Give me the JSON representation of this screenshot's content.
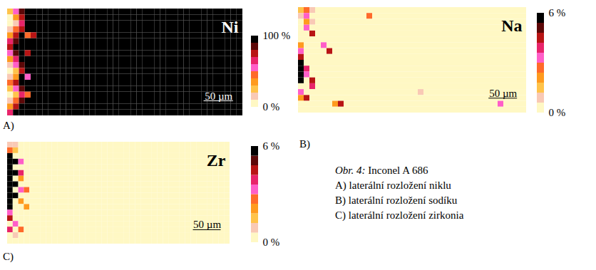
{
  "chart_data": [
    {
      "type": "heatmap",
      "title": "Ni",
      "panel_label": "A)",
      "tick_labels": false,
      "xlim": [
        0,
        400
      ],
      "ylim": [
        0,
        180
      ],
      "cell_size": 10,
      "base_value": 100,
      "colors": [
        "#fff8c4",
        "#f9c9b5",
        "#ffc34a",
        "#ff9a1e",
        "#ff6a2a",
        "#ff5ec8",
        "#e8246a",
        "#b81414",
        "#5c0808",
        "#000000"
      ],
      "cells": [
        [
          0,
          0,
          20
        ],
        [
          10,
          0,
          55
        ],
        [
          20,
          0,
          85
        ],
        [
          0,
          10,
          5
        ],
        [
          10,
          10,
          30
        ],
        [
          20,
          10,
          75
        ],
        [
          0,
          20,
          0
        ],
        [
          10,
          20,
          15
        ],
        [
          20,
          20,
          60
        ],
        [
          0,
          30,
          10
        ],
        [
          10,
          30,
          40
        ],
        [
          20,
          30,
          70
        ],
        [
          0,
          40,
          35
        ],
        [
          10,
          40,
          70
        ],
        [
          30,
          40,
          45
        ],
        [
          40,
          40,
          75
        ],
        [
          0,
          50,
          60
        ],
        [
          10,
          50,
          85
        ],
        [
          0,
          60,
          75
        ],
        [
          10,
          60,
          90
        ],
        [
          0,
          70,
          50
        ],
        [
          10,
          70,
          80
        ],
        [
          30,
          70,
          70
        ],
        [
          0,
          80,
          30
        ],
        [
          10,
          80,
          65
        ],
        [
          0,
          90,
          15
        ],
        [
          10,
          90,
          50
        ],
        [
          20,
          90,
          85
        ],
        [
          0,
          100,
          5
        ],
        [
          10,
          100,
          25
        ],
        [
          20,
          100,
          70
        ],
        [
          0,
          110,
          10
        ],
        [
          10,
          110,
          35
        ],
        [
          30,
          110,
          55
        ],
        [
          0,
          120,
          40
        ],
        [
          10,
          120,
          75
        ],
        [
          0,
          130,
          20
        ],
        [
          10,
          130,
          55
        ],
        [
          20,
          130,
          85
        ],
        [
          0,
          140,
          0
        ],
        [
          10,
          140,
          25
        ],
        [
          20,
          140,
          60
        ],
        [
          30,
          140,
          45
        ],
        [
          0,
          150,
          10
        ],
        [
          10,
          150,
          40
        ],
        [
          20,
          150,
          80
        ],
        [
          0,
          160,
          35
        ],
        [
          10,
          160,
          70
        ],
        [
          0,
          170,
          60
        ],
        [
          10,
          170,
          90
        ]
      ],
      "colorbar": {
        "range": [
          0,
          100
        ],
        "ticks": [
          {
            "value": 0,
            "label": "0 %"
          },
          {
            "value": 100,
            "label": "100 %"
          }
        ]
      },
      "scale_bar": {
        "length": 50,
        "label": "50 µm"
      }
    },
    {
      "type": "heatmap",
      "title": "Na",
      "panel_label": "B)",
      "tick_labels": false,
      "xlim": [
        0,
        400
      ],
      "ylim": [
        0,
        180
      ],
      "cell_size": 10,
      "base_value": 0,
      "colors": [
        "#fff8c4",
        "#f9c9b5",
        "#ffc34a",
        "#ff9a1e",
        "#ff6a2a",
        "#ff5ec8",
        "#e8246a",
        "#b81414",
        "#5c0808",
        "#000000"
      ],
      "cells": [
        [
          0,
          0,
          1.5
        ],
        [
          10,
          0,
          2.5
        ],
        [
          20,
          0,
          1
        ],
        [
          0,
          10,
          1
        ],
        [
          10,
          10,
          3
        ],
        [
          10,
          20,
          2
        ],
        [
          20,
          20,
          1
        ],
        [
          10,
          30,
          3
        ],
        [
          120,
          10,
          2.5
        ],
        [
          20,
          40,
          4.5
        ],
        [
          40,
          60,
          3
        ],
        [
          50,
          70,
          4.5
        ],
        [
          0,
          60,
          2
        ],
        [
          0,
          70,
          3
        ],
        [
          0,
          80,
          4.5
        ],
        [
          0,
          90,
          6
        ],
        [
          0,
          100,
          6
        ],
        [
          0,
          110,
          6
        ],
        [
          0,
          120,
          5.5
        ],
        [
          10,
          100,
          4
        ],
        [
          10,
          110,
          3
        ],
        [
          20,
          120,
          4.5
        ],
        [
          20,
          130,
          4
        ],
        [
          0,
          140,
          3
        ],
        [
          0,
          150,
          2
        ],
        [
          10,
          150,
          4.5
        ],
        [
          60,
          160,
          2
        ],
        [
          70,
          160,
          4.2
        ],
        [
          210,
          140,
          1
        ],
        [
          350,
          160,
          3.5
        ]
      ],
      "colorbar": {
        "range": [
          0,
          6
        ],
        "ticks": [
          {
            "value": 0,
            "label": "0 %"
          },
          {
            "value": 6,
            "label": "6 %"
          }
        ]
      },
      "scale_bar": {
        "length": 50,
        "label": "50 µm"
      }
    },
    {
      "type": "heatmap",
      "title": "Zr",
      "panel_label": "C)",
      "tick_labels": false,
      "xlim": [
        0,
        400
      ],
      "ylim": [
        0,
        180
      ],
      "cell_size": 10,
      "base_value": 0,
      "colors": [
        "#fff8c4",
        "#f9c9b5",
        "#ffc34a",
        "#ff9a1e",
        "#ff6a2a",
        "#ff5ec8",
        "#e8246a",
        "#b81414",
        "#5c0808",
        "#000000"
      ],
      "cells": [
        [
          0,
          0,
          1
        ],
        [
          10,
          0,
          0.8
        ],
        [
          0,
          10,
          2.5
        ],
        [
          10,
          10,
          1.5
        ],
        [
          0,
          20,
          6
        ],
        [
          0,
          30,
          6
        ],
        [
          0,
          40,
          6
        ],
        [
          0,
          50,
          6
        ],
        [
          0,
          60,
          6
        ],
        [
          0,
          70,
          6
        ],
        [
          0,
          80,
          6
        ],
        [
          0,
          90,
          6
        ],
        [
          0,
          100,
          6
        ],
        [
          0,
          110,
          6
        ],
        [
          10,
          30,
          6
        ],
        [
          10,
          50,
          6
        ],
        [
          10,
          70,
          5.5
        ],
        [
          10,
          90,
          6
        ],
        [
          20,
          30,
          3
        ],
        [
          20,
          50,
          4
        ],
        [
          20,
          60,
          2
        ],
        [
          20,
          80,
          3.5
        ],
        [
          20,
          100,
          2
        ],
        [
          30,
          80,
          2.5
        ],
        [
          30,
          110,
          2
        ],
        [
          0,
          120,
          3
        ],
        [
          0,
          130,
          4.5
        ],
        [
          10,
          140,
          3
        ],
        [
          0,
          150,
          4
        ],
        [
          20,
          150,
          2.5
        ],
        [
          10,
          160,
          1
        ]
      ],
      "colorbar": {
        "range": [
          0,
          6
        ],
        "ticks": [
          {
            "value": 0,
            "label": "0 %"
          },
          {
            "value": 6,
            "label": "6 %"
          }
        ]
      },
      "scale_bar": {
        "length": 50,
        "label": "50 µm"
      }
    }
  ],
  "caption": {
    "figure": "Obr. 4:",
    "text": "Inconel A 686",
    "items": [
      "A) laterální rozložení niklu",
      "B) laterální rozložení sodíku",
      "C) laterální rozložení zirkonia"
    ]
  }
}
